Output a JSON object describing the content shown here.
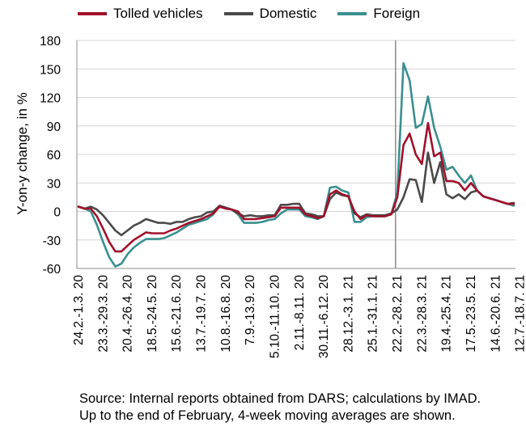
{
  "chart_data": {
    "type": "line",
    "title": "",
    "xlabel": "",
    "ylabel": "Y-on-y change, in %",
    "ylim": [
      -60,
      180
    ],
    "yticks": [
      -60,
      -30,
      0,
      30,
      60,
      90,
      120,
      150,
      180
    ],
    "tick_labels": [
      "24.2.-1.3. 20",
      "23.3.-29.3. 20",
      "20.4.-26.4. 20",
      "18.5.-24.5. 20",
      "15.6.-21.6. 20",
      "13.7.-19.7. 20",
      "10.8.-16.8. 20",
      "7.9.-13.9. 20",
      "5.10.-11.10. 20",
      "2.11.-8.11. 20",
      "30.11.-6.12. 20",
      "28.12.-3.1. 21",
      "25.1.-31.1. 21",
      "22.2.-28.2. 21",
      "22.3.-28.3. 21",
      "19.4.-25.4. 21",
      "17.5.-23.5. 21",
      "14.6.-20.6. 21",
      "12.7.-18.7. 21"
    ],
    "tick_week_index": [
      0,
      4,
      8,
      12,
      16,
      20,
      24,
      28,
      32,
      36,
      40,
      44,
      48,
      52,
      56,
      60,
      64,
      68,
      72
    ],
    "vertical_line_week_index": 51.7,
    "grid": true,
    "legend_position": "top",
    "series": [
      {
        "name": "Tolled vehicles",
        "color": "#a0112b",
        "values": [
          5,
          3,
          3,
          -5,
          -18,
          -32,
          -42,
          -42,
          -36,
          -30,
          -26,
          -22,
          -23,
          -23,
          -23,
          -20,
          -18,
          -15,
          -12,
          -10,
          -8,
          -5,
          -2,
          5,
          3,
          2,
          0,
          -8,
          -8,
          -8,
          -7,
          -6,
          -5,
          4,
          4,
          4,
          4,
          -3,
          -5,
          -7,
          -5,
          18,
          22,
          18,
          16,
          0,
          -8,
          -4,
          -5,
          -5,
          -5,
          -3,
          15,
          70,
          82,
          60,
          50,
          93,
          58,
          62,
          32,
          32,
          30,
          22,
          30,
          22,
          16,
          14,
          12,
          10,
          8,
          8
        ]
      },
      {
        "name": "Domestic",
        "color": "#4a4a4a",
        "values": [
          5,
          3,
          5,
          2,
          -4,
          -12,
          -20,
          -25,
          -20,
          -15,
          -12,
          -8,
          -10,
          -12,
          -12,
          -13,
          -11,
          -11,
          -8,
          -6,
          -5,
          -1,
          0,
          6,
          4,
          2,
          -2,
          -5,
          -4,
          -5,
          -5,
          -4,
          -4,
          7,
          7,
          8,
          8,
          -2,
          -3,
          -5,
          -5,
          13,
          20,
          17,
          16,
          -2,
          -6,
          -3,
          -4,
          -4,
          -4,
          -2,
          2,
          15,
          34,
          33,
          10,
          62,
          30,
          52,
          18,
          14,
          18,
          13,
          20,
          22,
          16,
          14,
          12,
          10,
          8,
          9
        ]
      },
      {
        "name": "Foreign",
        "color": "#3a8f8f",
        "values": [
          5,
          3,
          0,
          -14,
          -32,
          -48,
          -58,
          -55,
          -45,
          -38,
          -33,
          -29,
          -29,
          -29,
          -28,
          -25,
          -22,
          -18,
          -14,
          -12,
          -10,
          -8,
          -3,
          6,
          4,
          2,
          -3,
          -12,
          -12,
          -12,
          -11,
          -9,
          -8,
          -2,
          2,
          2,
          2,
          -5,
          -6,
          -8,
          -5,
          25,
          26,
          22,
          20,
          -11,
          -11,
          -6,
          -5,
          -5,
          -5,
          -3,
          20,
          156,
          138,
          88,
          92,
          121,
          88,
          68,
          44,
          47,
          38,
          30,
          38,
          22,
          16,
          14,
          12,
          10,
          8,
          6
        ]
      }
    ]
  },
  "legend": {
    "items": [
      {
        "label": "Tolled vehicles",
        "color": "#a0112b"
      },
      {
        "label": "Domestic",
        "color": "#4a4a4a"
      },
      {
        "label": "Foreign",
        "color": "#3a8f8f"
      }
    ]
  },
  "source": {
    "line1": "Source: Internal reports obtained from DARS; calculations by IMAD.",
    "line2": "Up to the end of February, 4-week moving averages are shown."
  }
}
